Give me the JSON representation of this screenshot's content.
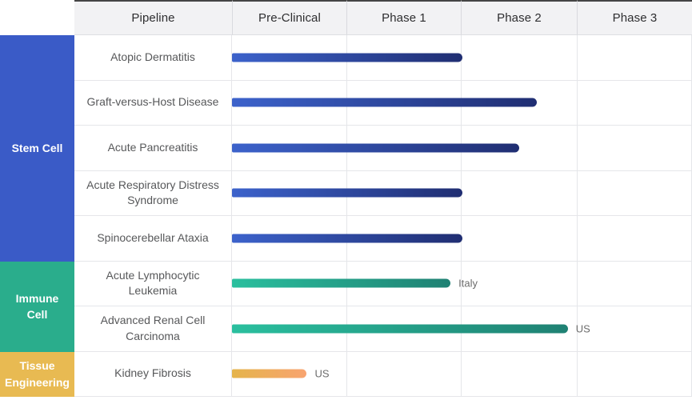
{
  "header": {
    "columns": [
      "Pipeline",
      "Pre-Clinical",
      "Phase 1",
      "Phase 2",
      "Phase 3"
    ]
  },
  "colors": {
    "header_bg": "#F2F2F4",
    "header_top_border": "#454545",
    "grid_line": "#E5E6EA",
    "pipeline_text": "#57585A",
    "country_text": "#6C6C6C"
  },
  "chart_data": {
    "type": "bar",
    "subtype": "pipeline-gantt",
    "phase_scale": [
      "Pre-Clinical",
      "Phase 1",
      "Phase 2",
      "Phase 3"
    ],
    "phase_units_total": 4,
    "legend_position": "none",
    "grid": true,
    "groups": [
      {
        "name": "Stem Cell",
        "color": "#3A5BC7",
        "bar_gradient": [
          "#3C62CB",
          "#202E72"
        ],
        "rows": [
          {
            "pipeline": "Atopic Dermatitis",
            "progress": 2.0,
            "label": ""
          },
          {
            "pipeline": "Graft-versus-Host Disease",
            "progress": 2.65,
            "label": ""
          },
          {
            "pipeline": "Acute Pancreatitis",
            "progress": 2.5,
            "label": ""
          },
          {
            "pipeline": "Acute Respiratory Distress Syndrome",
            "progress": 2.0,
            "label": ""
          },
          {
            "pipeline": "Spinocerebellar Ataxia",
            "progress": 2.0,
            "label": ""
          }
        ]
      },
      {
        "name": "Immune Cell",
        "color": "#2AAD8C",
        "bar_gradient": [
          "#2ABF9E",
          "#1F8173"
        ],
        "rows": [
          {
            "pipeline": "Acute Lymphocytic Leukemia",
            "progress": 1.9,
            "label": "Italy"
          },
          {
            "pipeline": "Advanced Renal Cell Carcinoma",
            "progress": 2.92,
            "label": "US"
          }
        ]
      },
      {
        "name": "Tissue Engineering",
        "color": "#E8BA52",
        "bar_gradient": [
          "#E5B44B",
          "#F8A470"
        ],
        "rows": [
          {
            "pipeline": "Kidney Fibrosis",
            "progress": 0.65,
            "label": "US"
          }
        ]
      }
    ]
  }
}
